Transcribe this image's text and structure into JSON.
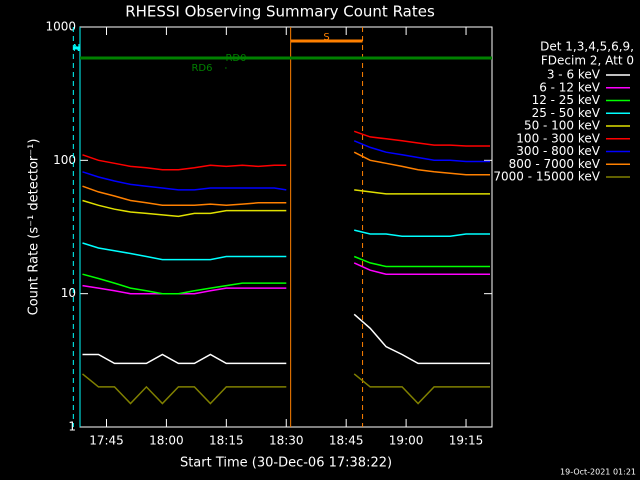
{
  "chart_data": {
    "type": "line",
    "title": "RHESSI Observing Summary Count Rates",
    "x_label": "Start Time (30-Dec-06 17:38:22)",
    "y_label": "Count Rate (s⁻¹ detector⁻¹)",
    "legend_header": [
      "Det 1,3,4,5,6,9,",
      "FDecim 2, Att 0"
    ],
    "timestamp": "19-Oct-2021 01:21",
    "log_y": true,
    "xlim": [
      1058.37,
      1161.5
    ],
    "ylim": [
      1,
      1000
    ],
    "xticks": [
      {
        "value": 1065,
        "label": "17:45"
      },
      {
        "value": 1080,
        "label": "18:00"
      },
      {
        "value": 1095,
        "label": "18:15"
      },
      {
        "value": 1110,
        "label": "18:30"
      },
      {
        "value": 1125,
        "label": "18:45"
      },
      {
        "value": 1140,
        "label": "19:00"
      },
      {
        "value": 1155,
        "label": "19:15"
      }
    ],
    "yticks": [
      1,
      10,
      100,
      1000
    ],
    "x": [
      1059,
      1063,
      1067,
      1071,
      1075,
      1079,
      1083,
      1087,
      1091,
      1095,
      1099,
      1103,
      1107,
      1110,
      1118,
      1127,
      1131,
      1135,
      1139,
      1143,
      1147,
      1151,
      1155,
      1159,
      1161
    ],
    "series": [
      {
        "name": "3 - 6 keV",
        "color": "#ffffff",
        "values": [
          3.5,
          3.5,
          3,
          3,
          3,
          3.5,
          3,
          3,
          3.5,
          3,
          3,
          3,
          3,
          3,
          null,
          7,
          5.5,
          4,
          3.5,
          3,
          3,
          3,
          3,
          3,
          3
        ]
      },
      {
        "name": "6 - 12 keV",
        "color": "#ff00ff",
        "values": [
          11.5,
          11,
          10.5,
          10,
          10,
          10,
          10,
          10,
          10.5,
          11,
          11,
          11,
          11,
          11,
          null,
          17,
          15,
          14,
          14,
          14,
          14,
          14,
          14,
          14,
          14
        ]
      },
      {
        "name": "12 - 25 keV",
        "color": "#00ff00",
        "values": [
          14,
          13,
          12,
          11,
          10.5,
          10,
          10,
          10.5,
          11,
          11.5,
          12,
          12,
          12,
          12,
          null,
          19,
          17,
          16,
          16,
          16,
          16,
          16,
          16,
          16,
          16
        ]
      },
      {
        "name": "25 - 50 keV",
        "color": "#00ffff",
        "values": [
          24,
          22,
          21,
          20,
          19,
          18,
          18,
          18,
          18,
          19,
          19,
          19,
          19,
          19,
          null,
          30,
          28,
          28,
          27,
          27,
          27,
          27,
          28,
          28,
          28
        ]
      },
      {
        "name": "50 - 100 keV",
        "color": "#e0e000",
        "values": [
          50,
          46,
          43,
          41,
          40,
          39,
          38,
          40,
          40,
          42,
          42,
          42,
          42,
          42,
          null,
          60,
          58,
          56,
          56,
          56,
          56,
          56,
          56,
          56,
          56
        ]
      },
      {
        "name": "100 - 300 keV",
        "color": "#ff0000",
        "values": [
          110,
          100,
          95,
          90,
          88,
          85,
          85,
          88,
          92,
          90,
          92,
          90,
          92,
          92,
          null,
          165,
          150,
          145,
          140,
          135,
          130,
          130,
          128,
          128,
          128
        ]
      },
      {
        "name": "300 - 800 keV",
        "color": "#0000ff",
        "values": [
          82,
          75,
          70,
          66,
          64,
          62,
          60,
          60,
          62,
          62,
          62,
          62,
          62,
          60,
          null,
          140,
          125,
          115,
          110,
          105,
          100,
          100,
          98,
          98,
          98
        ]
      },
      {
        "name": "800 - 7000 keV",
        "color": "#ff8000",
        "values": [
          64,
          58,
          54,
          50,
          48,
          46,
          46,
          46,
          47,
          46,
          47,
          48,
          48,
          48,
          null,
          115,
          100,
          95,
          90,
          85,
          82,
          80,
          78,
          78,
          78
        ]
      },
      {
        "name": "7000 - 15000 keV",
        "color": "#808000",
        "values": [
          2.5,
          2,
          2,
          1.5,
          2,
          1.5,
          2,
          2,
          1.5,
          2,
          2,
          2,
          2,
          2,
          null,
          2.5,
          2,
          2,
          2,
          1.5,
          2,
          2,
          2,
          2,
          2
        ]
      }
    ],
    "flags": [
      {
        "label": "N",
        "color": "#00ffff",
        "start": 1058.37,
        "end": 1056.7
      },
      {
        "label": "S",
        "color": "#ff8000",
        "start": 1111.1,
        "end": 1129.1
      },
      {
        "label": "RD0",
        "color": "#008000",
        "start": 1058.37,
        "end": 1161.5
      },
      {
        "label": "RD6",
        "color": "#008000",
        "start": 1094.8,
        "end": 1095.0
      }
    ]
  }
}
